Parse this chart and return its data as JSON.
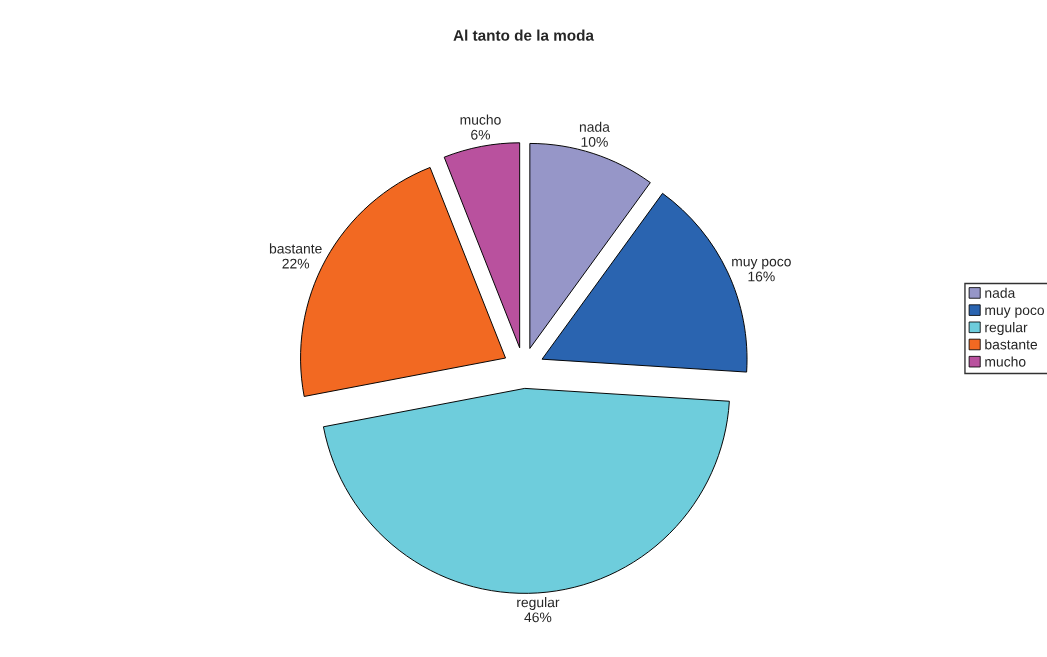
{
  "chart_data": {
    "type": "pie",
    "title": "Al tanto de la moda",
    "categories": [
      "nada",
      "muy poco",
      "regular",
      "bastante",
      "mucho"
    ],
    "values": [
      10,
      16,
      46,
      22,
      6
    ],
    "value_labels": [
      "10%",
      "16%",
      "46%",
      "22%",
      "6%"
    ],
    "colors": [
      "#9696c8",
      "#2a64b0",
      "#6ecddc",
      "#f26922",
      "#b9519e"
    ],
    "legend": "right"
  }
}
